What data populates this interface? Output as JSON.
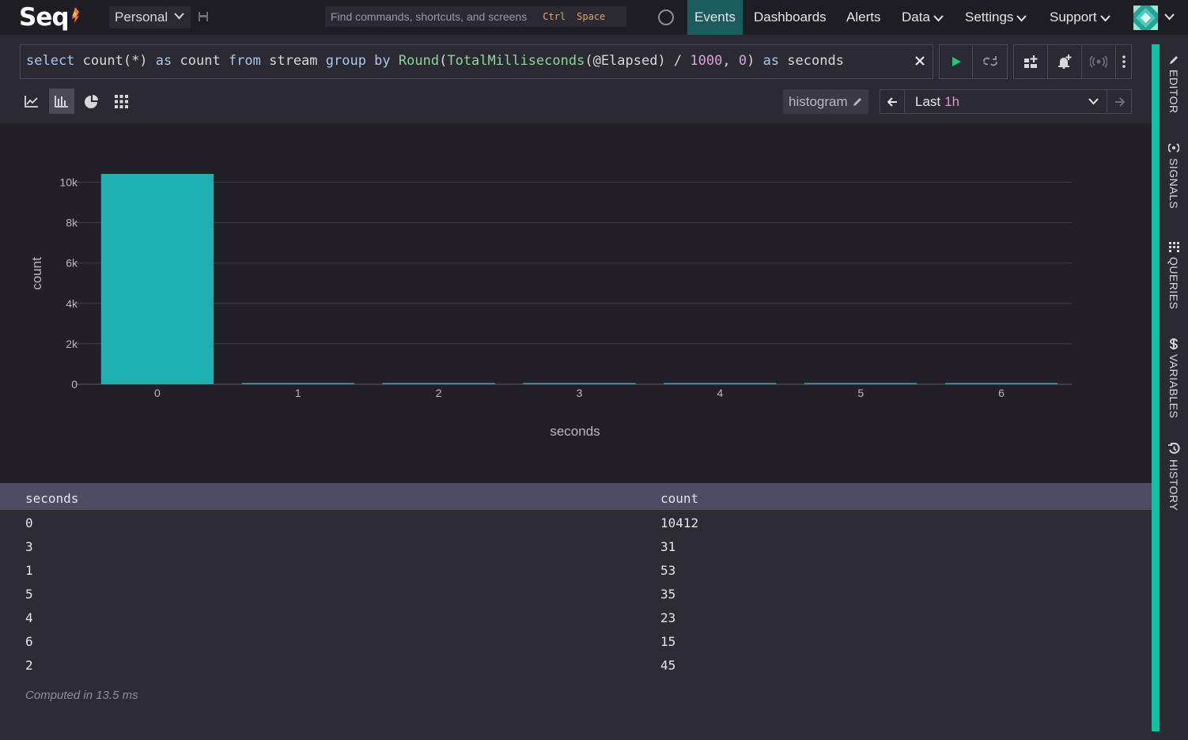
{
  "nav": {
    "logo": "Seq",
    "workspace": "Personal",
    "command_placeholder": "Find commands, shortcuts, and screens",
    "shortcut_key1": "Ctrl",
    "shortcut_key2": "Space",
    "items": [
      {
        "label": "Events",
        "active": true
      },
      {
        "label": "Dashboards"
      },
      {
        "label": "Alerts"
      },
      {
        "label": "Data",
        "dropdown": true
      },
      {
        "label": "Settings",
        "dropdown": true
      },
      {
        "label": "Support",
        "dropdown": true
      }
    ]
  },
  "query": {
    "tokens": [
      {
        "t": "select",
        "c": "kw"
      },
      {
        "t": " count(*) ",
        "c": ""
      },
      {
        "t": "as",
        "c": "kw"
      },
      {
        "t": " count ",
        "c": ""
      },
      {
        "t": "from",
        "c": "kw"
      },
      {
        "t": " stream ",
        "c": ""
      },
      {
        "t": "group by",
        "c": "kw"
      },
      {
        "t": " ",
        "c": ""
      },
      {
        "t": "Round",
        "c": "fn"
      },
      {
        "t": "(",
        "c": ""
      },
      {
        "t": "TotalMilliseconds",
        "c": "fn"
      },
      {
        "t": "(@Elapsed) / ",
        "c": ""
      },
      {
        "t": "1000",
        "c": "num"
      },
      {
        "t": ", ",
        "c": ""
      },
      {
        "t": "0",
        "c": "num"
      },
      {
        "t": ") ",
        "c": ""
      },
      {
        "t": "as",
        "c": "kw"
      },
      {
        "t": " seconds",
        "c": ""
      }
    ]
  },
  "toolbar": {
    "histogram_label": "histogram",
    "range_prefix": "Last",
    "range_value": "1h"
  },
  "chart_data": {
    "type": "bar",
    "categories": [
      "0",
      "1",
      "2",
      "3",
      "4",
      "5",
      "6"
    ],
    "values": [
      10412,
      53,
      45,
      31,
      23,
      35,
      15
    ],
    "xlabel": "seconds",
    "ylabel": "count",
    "ylim": [
      0,
      11000
    ],
    "yticks": [
      0,
      2000,
      4000,
      6000,
      8000,
      10000
    ],
    "ytick_labels": [
      "0",
      "2k",
      "4k",
      "6k",
      "8k",
      "10k"
    ],
    "grid": true,
    "bar_color": "#20b2b3"
  },
  "table": {
    "columns": [
      "seconds",
      "count"
    ],
    "rows": [
      [
        "0",
        "10412"
      ],
      [
        "3",
        "31"
      ],
      [
        "1",
        "53"
      ],
      [
        "5",
        "35"
      ],
      [
        "4",
        "23"
      ],
      [
        "6",
        "15"
      ],
      [
        "2",
        "45"
      ]
    ],
    "computed": "Computed in 13.5 ms"
  },
  "sidebar": {
    "tabs": [
      {
        "label": "EDITOR",
        "icon": "pencil-icon"
      },
      {
        "label": "SIGNALS",
        "icon": "broadcast-icon"
      },
      {
        "label": "QUERIES",
        "icon": "list-icon"
      },
      {
        "label": "VARIABLES",
        "icon": "dollar-icon"
      },
      {
        "label": "HISTORY",
        "icon": "history-icon"
      }
    ]
  }
}
